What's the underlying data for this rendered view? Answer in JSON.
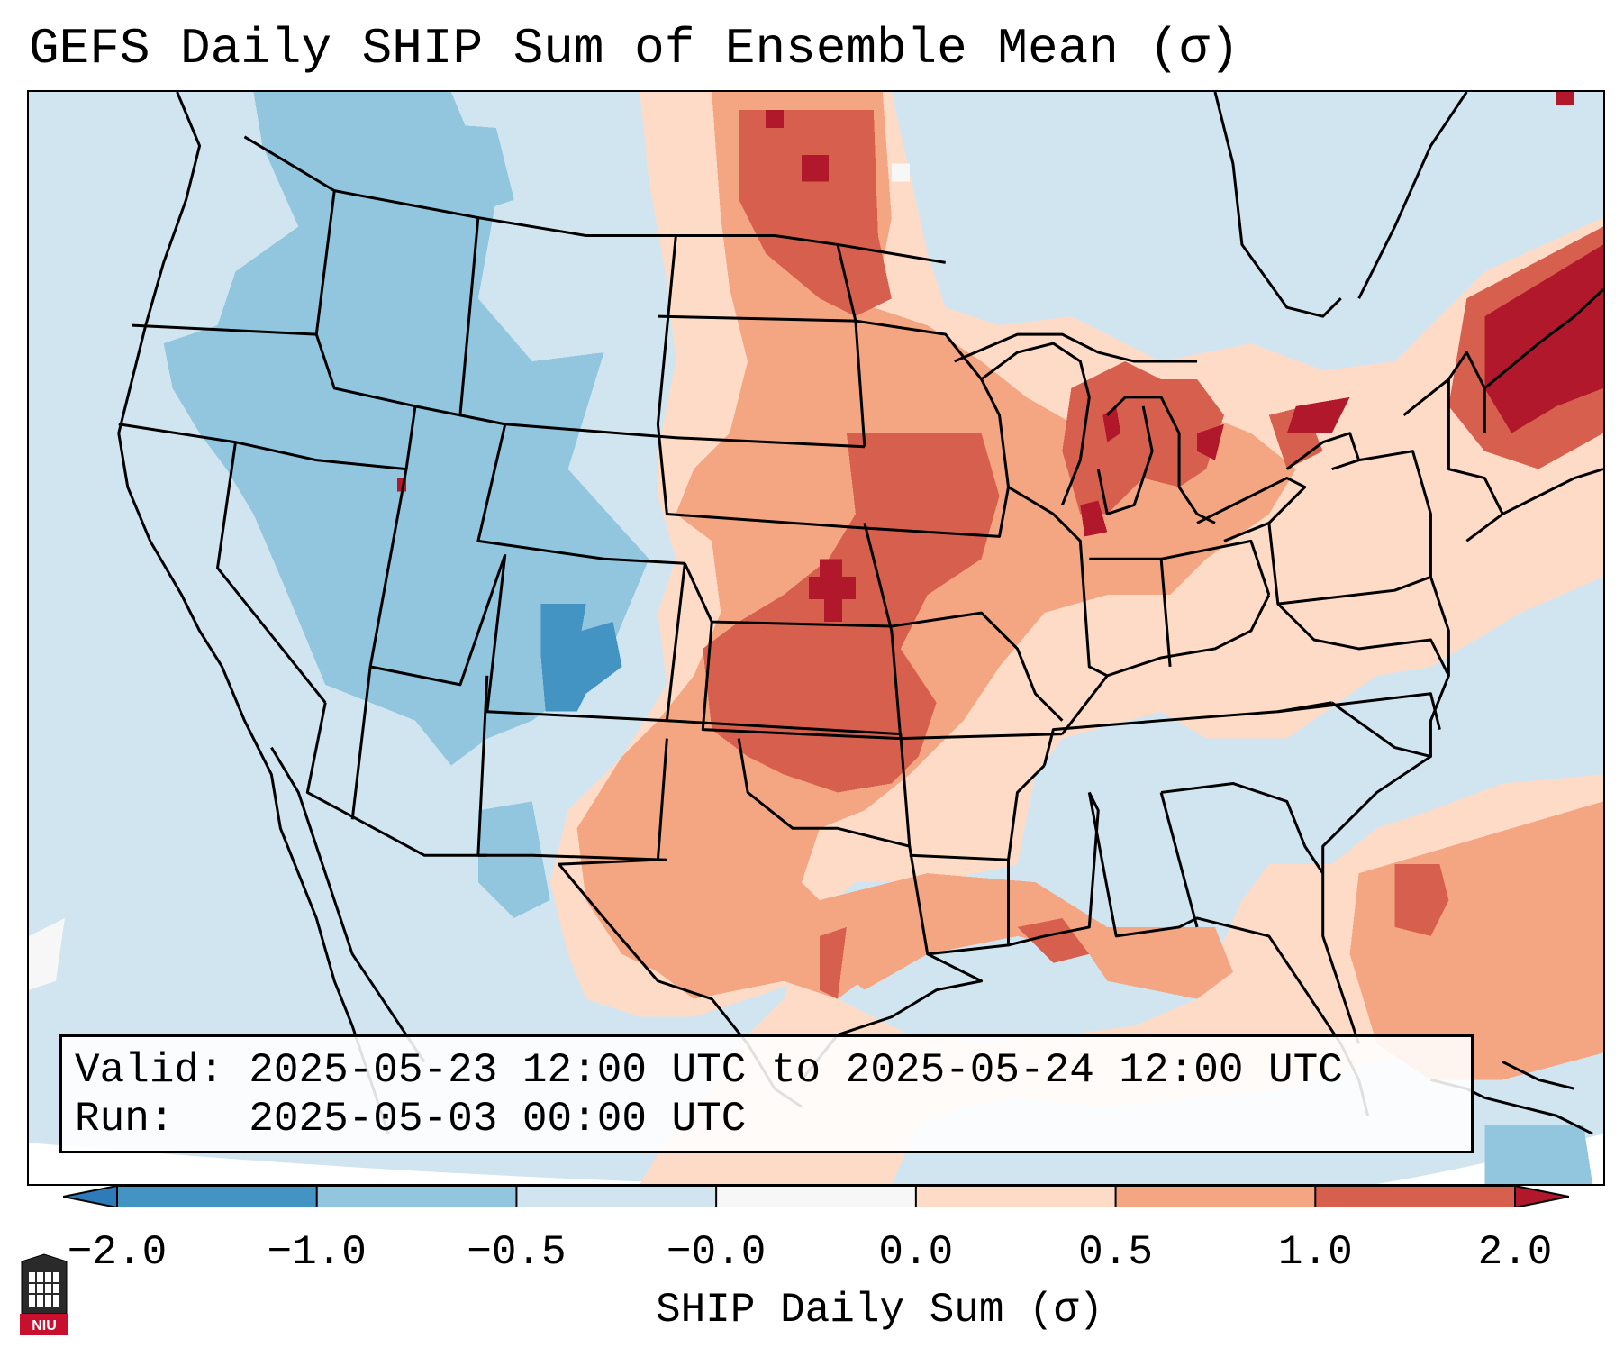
{
  "title": "GEFS Daily SHIP Sum of Ensemble Mean (σ)",
  "info": {
    "valid_label": "Valid:",
    "valid_value": "2025-05-23 12:00 UTC to 2025-05-24 12:00 UTC",
    "run_label": "Run:",
    "run_value": "2025-05-03 00:00 UTC"
  },
  "colorbar": {
    "label": "SHIP Daily Sum (σ)",
    "ticks": [
      "−2.0",
      "−1.0",
      "−0.5",
      "−0.0",
      "0.0",
      "0.5",
      "1.0",
      "2.0"
    ],
    "bins": [
      {
        "from": -3.0,
        "to": -2.0,
        "color": "#2f7ab8"
      },
      {
        "from": -2.0,
        "to": -1.0,
        "color": "#4393c3"
      },
      {
        "from": -1.0,
        "to": -0.5,
        "color": "#92c5de"
      },
      {
        "from": -0.5,
        "to": -0.0,
        "color": "#d1e5f0"
      },
      {
        "from": -0.0,
        "to": 0.0,
        "color": "#f7f7f7"
      },
      {
        "from": 0.0,
        "to": 0.5,
        "color": "#fddbc7"
      },
      {
        "from": 0.5,
        "to": 1.0,
        "color": "#f4a582"
      },
      {
        "from": 1.0,
        "to": 2.0,
        "color": "#d6604d"
      },
      {
        "from": 2.0,
        "to": 3.0,
        "color": "#b2182b"
      }
    ],
    "extend": "both"
  },
  "map": {
    "projection": "Lambert Conformal (CONUS)",
    "region": "Contiguous United States with southern Canada, northern Mexico, Gulf of Mexico, western Atlantic",
    "field_summary": {
      "negative_anomaly_regions": [
        "Pacific Northwest",
        "Idaho",
        "Montana",
        "Wyoming",
        "Nevada",
        "Utah",
        "Colorado",
        "Arizona",
        "New Mexico",
        "Mid-Atlantic"
      ],
      "positive_anomaly_regions": [
        "Great Plains",
        "Kansas",
        "Oklahoma",
        "Nebraska",
        "Iowa",
        "Missouri",
        "Great Lakes",
        "Texas",
        "Gulf Coast",
        "Northeast / New England",
        "Western Atlantic"
      ],
      "strongest_positive": [
        "central Kansas",
        "New York / New England",
        "Lake Michigan",
        "Lake Erie / Lake Ontario"
      ],
      "strongest_negative": [
        "central Colorado"
      ]
    }
  },
  "logo": {
    "text": "NIU",
    "icon": "university-shield-icon"
  }
}
